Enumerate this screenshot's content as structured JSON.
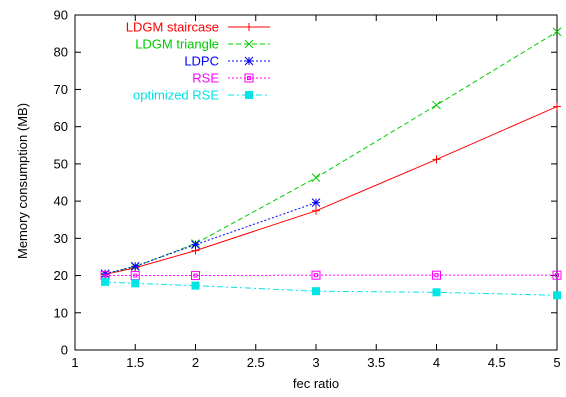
{
  "chart_data": {
    "type": "line",
    "title": "",
    "xlabel": "fec ratio",
    "ylabel": "Memory consumption (MB)",
    "xlim": [
      1,
      5
    ],
    "ylim": [
      0,
      90
    ],
    "x_ticks": [
      1,
      1.5,
      2,
      2.5,
      3,
      3.5,
      4,
      4.5,
      5
    ],
    "x_tick_labels": [
      "1",
      "1.5",
      "2",
      "2.5",
      "3",
      "3.5",
      "4",
      "4.5",
      "5"
    ],
    "y_ticks": [
      0,
      10,
      20,
      30,
      40,
      50,
      60,
      70,
      80,
      90
    ],
    "y_tick_labels": [
      "0",
      "10",
      "20",
      "30",
      "40",
      "50",
      "60",
      "70",
      "80",
      "90"
    ],
    "grid": false,
    "legend_position": "top-left",
    "series": [
      {
        "name": "LDGM staircase",
        "color": "#ff0000",
        "marker": "plus",
        "dash": "solid",
        "x": [
          1.25,
          1.5,
          2,
          3,
          4,
          5
        ],
        "y": [
          20.3,
          22.1,
          26.7,
          37.4,
          51.2,
          65.4
        ]
      },
      {
        "name": "LDGM triangle",
        "color": "#00cc00",
        "marker": "cross",
        "dash": "dashed",
        "x": [
          1.25,
          1.5,
          2,
          3,
          4,
          5
        ],
        "y": [
          20.4,
          22.4,
          28.6,
          46.3,
          65.8,
          85.5
        ]
      },
      {
        "name": "LDPC",
        "color": "#0000ff",
        "marker": "star",
        "dash": "dotted",
        "x": [
          1.25,
          1.5,
          2,
          3
        ],
        "y": [
          20.5,
          22.5,
          28.3,
          39.6
        ]
      },
      {
        "name": "RSE",
        "color": "#ff00ff",
        "marker": "open-square",
        "dash": "dotted",
        "x": [
          1.25,
          1.5,
          2,
          3,
          4,
          5
        ],
        "y": [
          20.0,
          20.0,
          20.0,
          20.1,
          20.1,
          20.1
        ]
      },
      {
        "name": "optimized RSE",
        "color": "#00e5e5",
        "marker": "filled-square",
        "dash": "dashdot",
        "x": [
          1.25,
          1.5,
          2,
          3,
          4,
          5
        ],
        "y": [
          18.3,
          17.9,
          17.3,
          15.8,
          15.5,
          14.7
        ]
      }
    ]
  }
}
